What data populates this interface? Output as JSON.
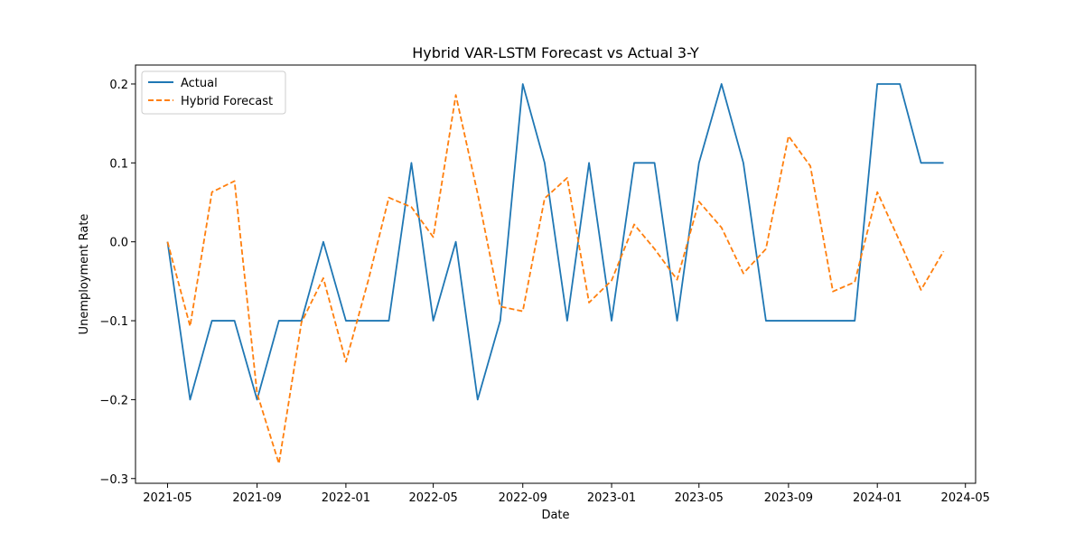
{
  "chart_data": {
    "type": "line",
    "title": "Hybrid VAR-LSTM Forecast vs Actual 3-Y",
    "xlabel": "Date",
    "ylabel": "Unemployment Rate",
    "x": [
      "2021-05-01",
      "2021-06-01",
      "2021-07-01",
      "2021-08-01",
      "2021-09-01",
      "2021-10-01",
      "2021-11-01",
      "2021-12-01",
      "2022-01-01",
      "2022-02-01",
      "2022-03-01",
      "2022-04-01",
      "2022-05-01",
      "2022-06-01",
      "2022-07-01",
      "2022-08-01",
      "2022-09-01",
      "2022-10-01",
      "2022-11-01",
      "2022-12-01",
      "2023-01-01",
      "2023-02-01",
      "2023-03-01",
      "2023-04-01",
      "2023-05-01",
      "2023-06-01",
      "2023-07-01",
      "2023-08-01",
      "2023-09-01",
      "2023-10-01",
      "2023-11-01",
      "2023-12-01",
      "2024-01-01",
      "2024-02-01",
      "2024-03-01",
      "2024-04-01"
    ],
    "series": [
      {
        "name": "Actual",
        "color": "#1f77b4",
        "style": "solid",
        "values": [
          0.0,
          -0.2,
          -0.1,
          -0.1,
          -0.2,
          -0.1,
          -0.1,
          0.0,
          -0.1,
          -0.1,
          -0.1,
          0.1,
          -0.1,
          0.0,
          -0.2,
          -0.1,
          0.2,
          0.1,
          -0.1,
          0.1,
          -0.1,
          0.1,
          0.1,
          -0.1,
          0.1,
          0.2,
          0.1,
          -0.1,
          -0.1,
          -0.1,
          -0.1,
          -0.1,
          0.2,
          0.2,
          0.1,
          0.1
        ]
      },
      {
        "name": "Hybrid Forecast",
        "color": "#ff7f0e",
        "style": "dashed",
        "values": [
          0.0,
          -0.107,
          0.063,
          0.077,
          -0.192,
          -0.281,
          -0.102,
          -0.046,
          -0.152,
          -0.048,
          0.056,
          0.044,
          0.006,
          0.186,
          0.061,
          -0.082,
          -0.088,
          0.055,
          0.081,
          -0.077,
          -0.049,
          0.022,
          -0.009,
          -0.048,
          0.051,
          0.018,
          -0.04,
          -0.009,
          0.134,
          0.096,
          -0.063,
          -0.051,
          0.063,
          0.0,
          -0.061,
          -0.012
        ]
      }
    ],
    "x_ticks": [
      "2021-05",
      "2021-09",
      "2022-01",
      "2022-05",
      "2022-09",
      "2023-01",
      "2023-05",
      "2023-09",
      "2024-01",
      "2024-05"
    ],
    "y_ticks": [
      "−0.3",
      "−0.2",
      "−0.1",
      "0.0",
      "0.1",
      "0.2"
    ],
    "y_tick_values": [
      -0.3,
      -0.2,
      -0.1,
      0.0,
      0.1,
      0.2
    ],
    "xlim": [
      "2021-03-18",
      "2024-05-15"
    ],
    "ylim": [
      -0.306,
      0.224
    ],
    "grid": false,
    "legend_position": "top-left"
  }
}
